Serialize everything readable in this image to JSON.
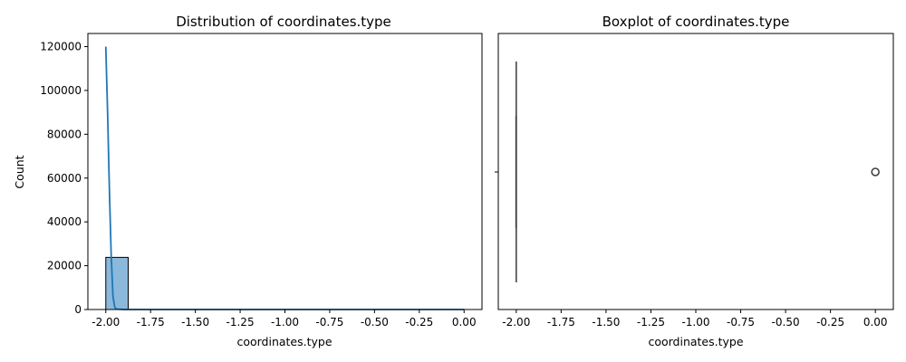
{
  "chart_data": [
    {
      "type": "bar",
      "title": "Distribution of coordinates.type",
      "xlabel": "coordinates.type",
      "ylabel": "Count",
      "xlim": [
        -2.1,
        0.1
      ],
      "ylim": [
        0,
        126000
      ],
      "x_ticks": [
        "-2.00",
        "-1.75",
        "-1.50",
        "-1.25",
        "-1.00",
        "-0.75",
        "-0.50",
        "-0.25",
        "0.00"
      ],
      "y_ticks": [
        "0",
        "20000",
        "40000",
        "60000",
        "80000",
        "100000",
        "120000"
      ],
      "bar_color": "#8bb8db",
      "bar_edge_color": "#000000",
      "kde_color": "#1f77b4",
      "bins": [
        {
          "x0": -2.0,
          "x1": -1.875,
          "count": 23800
        },
        {
          "x0": -1.875,
          "x1": -1.75,
          "count": 0
        },
        {
          "x0": -1.75,
          "x1": -1.625,
          "count": 0
        },
        {
          "x0": -1.625,
          "x1": -1.5,
          "count": 0
        },
        {
          "x0": -1.5,
          "x1": -1.375,
          "count": 0
        },
        {
          "x0": -1.375,
          "x1": -1.25,
          "count": 0
        },
        {
          "x0": -1.25,
          "x1": -1.125,
          "count": 0
        },
        {
          "x0": -1.125,
          "x1": -1.0,
          "count": 0
        },
        {
          "x0": -1.0,
          "x1": -0.875,
          "count": 0
        },
        {
          "x0": -0.875,
          "x1": -0.75,
          "count": 0
        },
        {
          "x0": -0.75,
          "x1": -0.625,
          "count": 0
        },
        {
          "x0": -0.625,
          "x1": -0.5,
          "count": 0
        },
        {
          "x0": -0.5,
          "x1": -0.375,
          "count": 0
        },
        {
          "x0": -0.375,
          "x1": -0.25,
          "count": 0
        },
        {
          "x0": -0.25,
          "x1": -0.125,
          "count": 0
        },
        {
          "x0": -0.125,
          "x1": 0.0,
          "count": 1
        }
      ],
      "kde": {
        "x": [
          -2.0,
          -1.99,
          -1.98,
          -1.97,
          -1.96,
          -1.95,
          -1.94,
          -1.9,
          -1.8,
          -1.5,
          -1.0,
          -0.5,
          0.0
        ],
        "y": [
          120000,
          90000,
          55000,
          25000,
          6000,
          1000,
          200,
          0,
          0,
          0,
          0,
          0,
          0
        ]
      }
    },
    {
      "type": "box",
      "title": "Boxplot of coordinates.type",
      "xlabel": "coordinates.type",
      "xlim": [
        -2.1,
        0.1
      ],
      "x_ticks": [
        "-2.00",
        "-1.75",
        "-1.50",
        "-1.25",
        "-1.00",
        "-0.75",
        "-0.50",
        "-0.25",
        "0.00"
      ],
      "box": {
        "whisker_low": -2.0,
        "q1": -2.0,
        "median": -2.0,
        "q3": -2.0,
        "whisker_high": -2.0
      },
      "outliers": [
        0.0
      ],
      "box_color": "#3a3a3a"
    }
  ]
}
